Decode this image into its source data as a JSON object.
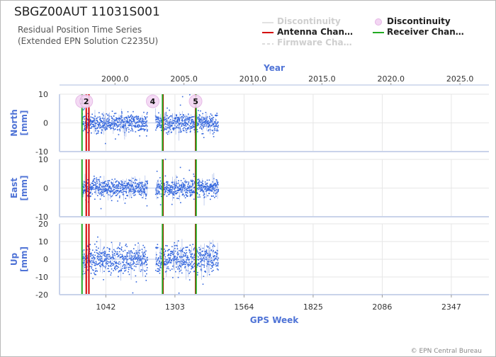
{
  "header": {
    "title": "SBGZ00AUT 11031S001",
    "subtitle_line1": "Residual Position Time Series",
    "subtitle_line2": "(Extended EPN Solution C2235U)"
  },
  "legend": {
    "items": [
      {
        "label": "Discontinuity",
        "kind": "line",
        "color": "#dddddd",
        "active": false
      },
      {
        "label": "Discontinuity",
        "kind": "dot",
        "color": "#f3d6f3",
        "active": true
      },
      {
        "label": "Antenna Chan…",
        "kind": "line",
        "color": "#d40000",
        "active": true
      },
      {
        "label": "Receiver Chan…",
        "kind": "line",
        "color": "#22aa22",
        "active": true
      },
      {
        "label": "Firmware Cha…",
        "kind": "dash",
        "color": "#dddddd",
        "active": false
      }
    ]
  },
  "copyright": "© EPN Central Bureau",
  "colors": {
    "axis_label": "#4f73d6",
    "tick_label": "#333333",
    "data_points": "#3366dd",
    "antenna_change": "#d40000",
    "receiver_change": "#22aa22",
    "discontinuity_marker": "#f3d6f3",
    "grid": "#e6e6e6"
  },
  "chart_data": {
    "type": "scatter",
    "x_top": {
      "label": "Year",
      "range": [
        1995.98,
        2027.1
      ],
      "ticks": [
        2000,
        2005,
        2010,
        2015,
        2020,
        2025
      ],
      "tick_labels": [
        "2000.0",
        "2005.0",
        "2010.0",
        "2015.0",
        "2020.0",
        "2025.0"
      ]
    },
    "x_bottom": {
      "label": "GPS Week",
      "range": [
        867,
        2489
      ],
      "ticks": [
        1042,
        1303,
        1564,
        1825,
        2086,
        2347
      ],
      "tick_labels": [
        "1042",
        "1303",
        "1564",
        "1825",
        "2086",
        "2347"
      ]
    },
    "panels": [
      {
        "name": "North",
        "ylabel": "North\n[mm]",
        "ylim": [
          -10,
          10
        ],
        "yticks": [
          -10,
          0,
          10
        ],
        "ytick_labels": [
          "-10",
          "0",
          "10"
        ],
        "noise": 1.6
      },
      {
        "name": "East",
        "ylabel": "East\n[mm]",
        "ylim": [
          -10,
          10
        ],
        "yticks": [
          -10,
          0,
          10
        ],
        "ytick_labels": [
          "-10",
          "0",
          "10"
        ],
        "noise": 1.5
      },
      {
        "name": "Up",
        "ylabel": "Up\n[mm]",
        "ylim": [
          -20,
          20
        ],
        "yticks": [
          -20,
          -10,
          0,
          10,
          20
        ],
        "ytick_labels": [
          "-20",
          "-10",
          "0",
          "10",
          "20"
        ],
        "noise": 4.0
      }
    ],
    "data_span_weeks": [
      952,
      1467
    ],
    "data_gaps_weeks": [
      [
        1200,
        1230
      ],
      [
        1255,
        1258
      ]
    ],
    "discontinuities": [
      {
        "label": "1",
        "week": 952
      },
      {
        "label": "2",
        "week": 968
      },
      {
        "label": "4",
        "week": 1219
      },
      {
        "label": "5",
        "week": 1381
      }
    ],
    "antenna_changes_weeks": [
      968,
      978,
      1258,
      1381
    ],
    "receiver_changes_weeks": [
      952,
      1256,
      1383
    ]
  }
}
